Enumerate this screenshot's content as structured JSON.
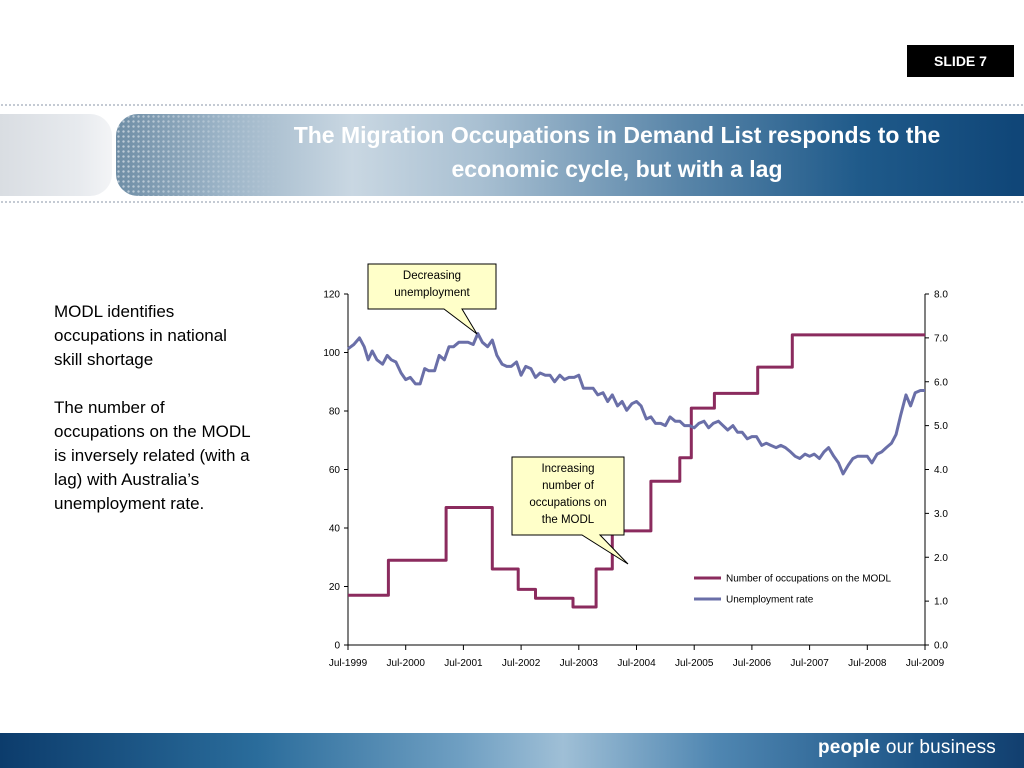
{
  "slide_label": "SLIDE 7",
  "title": {
    "line1": "The Migration Occupations in Demand List responds to the",
    "line2": "economic cycle, but with a lag"
  },
  "body": {
    "para1": "MODL identifies occupations in national skill shortage",
    "para2": "The number of occupations on the MODL is inversely related (with a lag) with Australia’s unemployment rate."
  },
  "footer": {
    "brand_bold": "people",
    "brand_rest": "our business"
  },
  "colors": {
    "modl": "#8b2b5e",
    "unemployment": "#6a6fa8",
    "footer": "#1d5587",
    "callout": "#ffffc9"
  },
  "chart_data": {
    "type": "line",
    "x_tick_labels": [
      "Jul-1999",
      "Jul-2000",
      "Jul-2001",
      "Jul-2002",
      "Jul-2003",
      "Jul-2004",
      "Jul-2005",
      "Jul-2006",
      "Jul-2007",
      "Jul-2008",
      "Jul-2009"
    ],
    "y_left": {
      "ticks": [
        "0",
        "20",
        "40",
        "60",
        "80",
        "100",
        "120"
      ],
      "range": [
        0,
        120
      ]
    },
    "y_right": {
      "ticks": [
        "0.0",
        "1.0",
        "2.0",
        "3.0",
        "4.0",
        "5.0",
        "6.0",
        "7.0",
        "8.0"
      ],
      "range": [
        0,
        8
      ]
    },
    "x_range": [
      1999.5,
      2009.5
    ],
    "legend": {
      "position": "bottom-right"
    },
    "series": [
      {
        "name": "Number of occupations on the MODL",
        "axis": "left",
        "points": [
          [
            1999.5,
            17
          ],
          [
            2000.2,
            17
          ],
          [
            2000.2,
            29
          ],
          [
            2001.2,
            29
          ],
          [
            2001.2,
            47
          ],
          [
            2002.0,
            47
          ],
          [
            2002.0,
            26
          ],
          [
            2002.45,
            26
          ],
          [
            2002.45,
            19
          ],
          [
            2002.75,
            19
          ],
          [
            2002.75,
            16
          ],
          [
            2003.4,
            16
          ],
          [
            2003.4,
            13
          ],
          [
            2003.8,
            13
          ],
          [
            2003.8,
            26
          ],
          [
            2004.08,
            26
          ],
          [
            2004.08,
            39
          ],
          [
            2004.75,
            39
          ],
          [
            2004.75,
            56
          ],
          [
            2005.25,
            56
          ],
          [
            2005.25,
            64
          ],
          [
            2005.45,
            64
          ],
          [
            2005.45,
            81
          ],
          [
            2005.85,
            81
          ],
          [
            2005.85,
            86
          ],
          [
            2006.6,
            86
          ],
          [
            2006.6,
            95
          ],
          [
            2007.2,
            95
          ],
          [
            2007.2,
            106
          ],
          [
            2009.5,
            106
          ]
        ]
      },
      {
        "name": "Unemployment rate",
        "axis": "right",
        "points": [
          [
            1999.5,
            6.75
          ],
          [
            1999.6,
            6.85
          ],
          [
            1999.7,
            7.0
          ],
          [
            1999.78,
            6.8
          ],
          [
            1999.85,
            6.5
          ],
          [
            1999.92,
            6.7
          ],
          [
            2000.0,
            6.5
          ],
          [
            2000.1,
            6.4
          ],
          [
            2000.18,
            6.6
          ],
          [
            2000.25,
            6.5
          ],
          [
            2000.33,
            6.45
          ],
          [
            2000.42,
            6.2
          ],
          [
            2000.5,
            6.05
          ],
          [
            2000.58,
            6.1
          ],
          [
            2000.67,
            5.95
          ],
          [
            2000.75,
            5.95
          ],
          [
            2000.83,
            6.3
          ],
          [
            2000.9,
            6.25
          ],
          [
            2001.0,
            6.25
          ],
          [
            2001.08,
            6.6
          ],
          [
            2001.17,
            6.5
          ],
          [
            2001.25,
            6.8
          ],
          [
            2001.33,
            6.8
          ],
          [
            2001.42,
            6.9
          ],
          [
            2001.5,
            6.9
          ],
          [
            2001.58,
            6.9
          ],
          [
            2001.67,
            6.85
          ],
          [
            2001.75,
            7.1
          ],
          [
            2001.83,
            6.9
          ],
          [
            2001.92,
            6.8
          ],
          [
            2002.0,
            6.95
          ],
          [
            2002.08,
            6.6
          ],
          [
            2002.17,
            6.4
          ],
          [
            2002.25,
            6.35
          ],
          [
            2002.33,
            6.35
          ],
          [
            2002.42,
            6.45
          ],
          [
            2002.5,
            6.15
          ],
          [
            2002.58,
            6.35
          ],
          [
            2002.67,
            6.3
          ],
          [
            2002.75,
            6.1
          ],
          [
            2002.83,
            6.2
          ],
          [
            2002.92,
            6.15
          ],
          [
            2003.0,
            6.15
          ],
          [
            2003.08,
            6.0
          ],
          [
            2003.17,
            6.15
          ],
          [
            2003.25,
            6.05
          ],
          [
            2003.33,
            6.1
          ],
          [
            2003.42,
            6.1
          ],
          [
            2003.5,
            6.15
          ],
          [
            2003.58,
            5.85
          ],
          [
            2003.67,
            5.85
          ],
          [
            2003.75,
            5.85
          ],
          [
            2003.83,
            5.7
          ],
          [
            2003.92,
            5.75
          ],
          [
            2004.0,
            5.55
          ],
          [
            2004.08,
            5.7
          ],
          [
            2004.17,
            5.45
          ],
          [
            2004.25,
            5.55
          ],
          [
            2004.33,
            5.35
          ],
          [
            2004.42,
            5.5
          ],
          [
            2004.5,
            5.55
          ],
          [
            2004.58,
            5.45
          ],
          [
            2004.67,
            5.15
          ],
          [
            2004.75,
            5.2
          ],
          [
            2004.83,
            5.05
          ],
          [
            2004.92,
            5.05
          ],
          [
            2005.0,
            5.0
          ],
          [
            2005.08,
            5.2
          ],
          [
            2005.17,
            5.1
          ],
          [
            2005.25,
            5.1
          ],
          [
            2005.33,
            5.0
          ],
          [
            2005.42,
            5.0
          ],
          [
            2005.5,
            4.95
          ],
          [
            2005.58,
            5.05
          ],
          [
            2005.67,
            5.1
          ],
          [
            2005.75,
            4.95
          ],
          [
            2005.83,
            5.05
          ],
          [
            2005.92,
            5.1
          ],
          [
            2006.0,
            5.0
          ],
          [
            2006.08,
            4.9
          ],
          [
            2006.17,
            5.0
          ],
          [
            2006.25,
            4.85
          ],
          [
            2006.33,
            4.85
          ],
          [
            2006.42,
            4.7
          ],
          [
            2006.5,
            4.75
          ],
          [
            2006.58,
            4.75
          ],
          [
            2006.67,
            4.55
          ],
          [
            2006.75,
            4.6
          ],
          [
            2006.83,
            4.55
          ],
          [
            2006.92,
            4.5
          ],
          [
            2007.0,
            4.55
          ],
          [
            2007.08,
            4.5
          ],
          [
            2007.17,
            4.4
          ],
          [
            2007.25,
            4.3
          ],
          [
            2007.33,
            4.25
          ],
          [
            2007.42,
            4.35
          ],
          [
            2007.5,
            4.3
          ],
          [
            2007.58,
            4.35
          ],
          [
            2007.67,
            4.25
          ],
          [
            2007.75,
            4.4
          ],
          [
            2007.83,
            4.5
          ],
          [
            2007.92,
            4.3
          ],
          [
            2008.0,
            4.15
          ],
          [
            2008.08,
            3.9
          ],
          [
            2008.17,
            4.1
          ],
          [
            2008.25,
            4.25
          ],
          [
            2008.33,
            4.3
          ],
          [
            2008.42,
            4.3
          ],
          [
            2008.5,
            4.3
          ],
          [
            2008.58,
            4.15
          ],
          [
            2008.67,
            4.35
          ],
          [
            2008.75,
            4.4
          ],
          [
            2008.83,
            4.5
          ],
          [
            2008.92,
            4.6
          ],
          [
            2009.0,
            4.8
          ],
          [
            2009.08,
            5.25
          ],
          [
            2009.17,
            5.7
          ],
          [
            2009.25,
            5.45
          ],
          [
            2009.33,
            5.75
          ],
          [
            2009.42,
            5.8
          ],
          [
            2009.5,
            5.8
          ]
        ]
      }
    ],
    "annotations": [
      {
        "line1": "Decreasing",
        "line2": "unemployment"
      },
      {
        "line1": "Increasing",
        "line2": "number of",
        "line3": "occupations on",
        "line4": "the MODL"
      }
    ]
  }
}
